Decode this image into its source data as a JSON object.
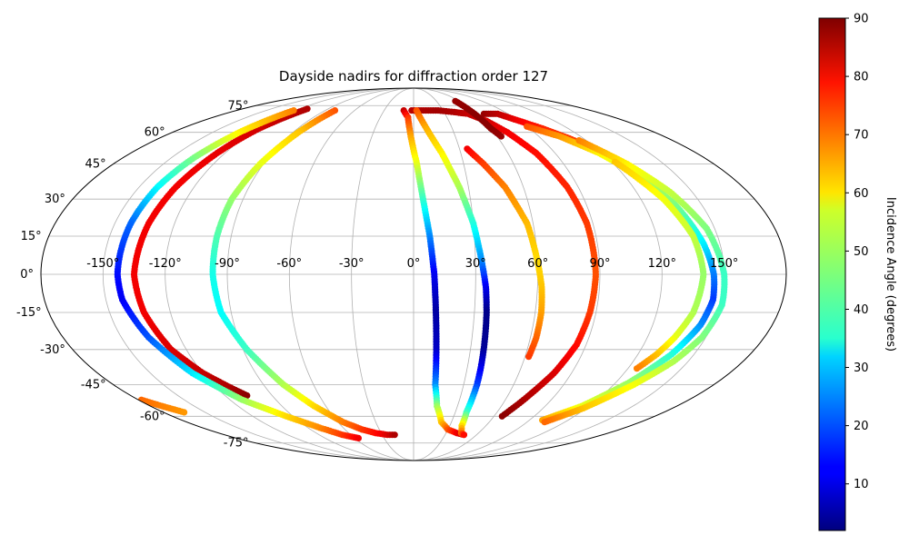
{
  "chart_data": {
    "type": "scatter",
    "projection": "mollweide",
    "title": "Dayside nadirs for diffraction order 127",
    "xlabel": "",
    "ylabel": "",
    "xlim": [
      -180,
      180
    ],
    "ylim": [
      -90,
      90
    ],
    "grid": true,
    "x_ticks": [
      -150,
      -120,
      -90,
      -60,
      -30,
      0,
      30,
      60,
      90,
      120,
      150
    ],
    "y_ticks": [
      -75,
      -60,
      -45,
      -30,
      -15,
      0,
      15,
      30,
      45,
      60,
      75
    ],
    "x_tick_labels": [
      "-150°",
      "-120°",
      "-90°",
      "-60°",
      "-30°",
      "0°",
      "30°",
      "60°",
      "90°",
      "120°",
      "150°"
    ],
    "y_tick_labels": [
      "-75°",
      "-60°",
      "-45°",
      "-30°",
      "-15°",
      "0°",
      "15°",
      "30°",
      "45°",
      "60°",
      "75°"
    ],
    "colorbar": {
      "label": "Incidence Angle (degrees)",
      "colormap": "jet",
      "min": 2,
      "max": 90,
      "ticks": [
        10,
        20,
        30,
        40,
        50,
        60,
        70,
        80,
        90
      ],
      "tick_labels": [
        "10",
        "20",
        "30",
        "40",
        "50",
        "60",
        "70",
        "80",
        "90"
      ]
    },
    "series": [
      {
        "points": [
          [
            -112,
            73,
            86
          ],
          [
            -120,
            62,
            83
          ],
          [
            -125,
            50,
            81
          ],
          [
            -130,
            35,
            80
          ],
          [
            -133,
            20,
            80
          ],
          [
            -135,
            0,
            80
          ],
          [
            -133,
            -15,
            80
          ],
          [
            -128,
            -30,
            82
          ],
          [
            -120,
            -40,
            84
          ],
          [
            -112,
            -46,
            86
          ],
          [
            -106,
            -50,
            89
          ]
        ]
      },
      {
        "points": [
          [
            -122,
            72,
            68
          ],
          [
            -130,
            60,
            58
          ],
          [
            -136,
            48,
            46
          ],
          [
            -140,
            35,
            35
          ],
          [
            -142,
            20,
            22
          ],
          [
            -143,
            0,
            14
          ],
          [
            -142,
            -10,
            12
          ],
          [
            -136,
            -25,
            20
          ],
          [
            -126,
            -40,
            33
          ],
          [
            -112,
            -52,
            48
          ],
          [
            -95,
            -60,
            60
          ],
          [
            -80,
            -66,
            67
          ],
          [
            -68,
            -70,
            74
          ],
          [
            -56,
            -72,
            80
          ]
        ]
      },
      {
        "points": [
          [
            -80,
            72,
            72
          ],
          [
            -86,
            60,
            62
          ],
          [
            -92,
            45,
            55
          ],
          [
            -96,
            30,
            48
          ],
          [
            -97,
            15,
            42
          ],
          [
            -97,
            0,
            37
          ],
          [
            -95,
            -15,
            35
          ],
          [
            -88,
            -30,
            40
          ],
          [
            -78,
            -45,
            50
          ],
          [
            -68,
            -55,
            60
          ],
          [
            -56,
            -63,
            68
          ],
          [
            -45,
            -67,
            74
          ],
          [
            -35,
            -69,
            78
          ],
          [
            -25,
            -70,
            82
          ],
          [
            -18,
            -70,
            86
          ]
        ]
      },
      {
        "points": [
          [
            -10,
            72,
            84
          ],
          [
            -5,
            68,
            75
          ],
          [
            -2,
            58,
            65
          ],
          [
            2,
            45,
            55
          ],
          [
            5,
            30,
            40
          ],
          [
            8,
            15,
            25
          ],
          [
            10,
            0,
            12
          ],
          [
            11,
            -15,
            5
          ],
          [
            12,
            -30,
            8
          ],
          [
            13,
            -45,
            25
          ],
          [
            16,
            -55,
            48
          ],
          [
            22,
            -63,
            62
          ],
          [
            30,
            -67,
            72
          ],
          [
            40,
            -69,
            80
          ],
          [
            48,
            -70,
            84
          ]
        ]
      },
      {
        "points": [
          [
            -2,
            72,
            85
          ],
          [
            10,
            72,
            86
          ],
          [
            25,
            72,
            87
          ],
          [
            40,
            71,
            86
          ],
          [
            52,
            70,
            84
          ],
          [
            62,
            66,
            83
          ],
          [
            70,
            60,
            80
          ],
          [
            78,
            50,
            78
          ],
          [
            84,
            35,
            76
          ],
          [
            87,
            20,
            74
          ],
          [
            88,
            0,
            72
          ],
          [
            87,
            -15,
            74
          ],
          [
            85,
            -28,
            78
          ],
          [
            80,
            -40,
            82
          ],
          [
            72,
            -52,
            86
          ],
          [
            66,
            -60,
            89
          ]
        ]
      },
      {
        "points": [
          [
            3,
            72,
            72
          ],
          [
            10,
            62,
            64
          ],
          [
            18,
            50,
            58
          ],
          [
            25,
            35,
            50
          ],
          [
            30,
            20,
            38
          ],
          [
            33,
            5,
            25
          ],
          [
            35,
            -5,
            12
          ],
          [
            36,
            -15,
            3
          ],
          [
            37,
            -30,
            4
          ],
          [
            38,
            -45,
            18
          ],
          [
            38,
            -58,
            40
          ],
          [
            40,
            -65,
            60
          ],
          [
            44,
            -69,
            70
          ],
          [
            48,
            -70,
            78
          ]
        ]
      },
      {
        "points": [
          [
            35,
            52,
            80
          ],
          [
            42,
            45,
            74
          ],
          [
            50,
            35,
            68
          ],
          [
            57,
            20,
            63
          ],
          [
            60,
            5,
            60
          ],
          [
            62,
            -5,
            62
          ],
          [
            63,
            -15,
            65
          ],
          [
            63,
            -25,
            70
          ],
          [
            62,
            -33,
            74
          ]
        ]
      },
      {
        "points": [
          [
            55,
            78,
            88
          ],
          [
            58,
            70,
            89
          ],
          [
            60,
            62,
            89
          ],
          [
            63,
            58,
            88
          ]
        ]
      },
      {
        "points": [
          [
            67,
            70,
            88
          ],
          [
            80,
            70,
            85
          ],
          [
            90,
            66,
            80
          ],
          [
            100,
            62,
            76
          ],
          [
            110,
            57,
            74
          ],
          [
            118,
            52,
            72
          ],
          [
            125,
            45,
            70
          ]
        ]
      },
      {
        "points": [
          [
            90,
            63,
            72
          ],
          [
            105,
            58,
            66
          ],
          [
            118,
            50,
            58
          ],
          [
            128,
            40,
            52
          ],
          [
            136,
            28,
            46
          ],
          [
            142,
            12,
            34
          ],
          [
            145,
            0,
            24
          ],
          [
            146,
            -10,
            18
          ],
          [
            144,
            -20,
            25
          ],
          [
            138,
            -32,
            38
          ],
          [
            128,
            -44,
            48
          ],
          [
            115,
            -55,
            55
          ],
          [
            100,
            -62,
            65
          ]
        ]
      },
      {
        "points": [
          [
            115,
            56,
            68
          ],
          [
            128,
            45,
            58
          ],
          [
            138,
            33,
            52
          ],
          [
            146,
            18,
            46
          ],
          [
            150,
            0,
            40
          ],
          [
            151,
            -12,
            40
          ],
          [
            148,
            -25,
            46
          ],
          [
            142,
            -35,
            50
          ],
          [
            132,
            -45,
            56
          ],
          [
            118,
            -56,
            62
          ],
          [
            104,
            -63,
            70
          ]
        ]
      },
      {
        "points": [
          [
            122,
            46,
            62
          ],
          [
            132,
            30,
            56
          ],
          [
            138,
            15,
            52
          ],
          [
            140,
            0,
            48
          ],
          [
            138,
            -15,
            50
          ],
          [
            134,
            -25,
            55
          ],
          [
            130,
            -32,
            62
          ],
          [
            125,
            -38,
            68
          ]
        ]
      },
      {
        "points": [
          [
            -178,
            -52,
            70
          ],
          [
            -172,
            -55,
            68
          ],
          [
            -165,
            -58,
            66
          ]
        ]
      }
    ]
  }
}
